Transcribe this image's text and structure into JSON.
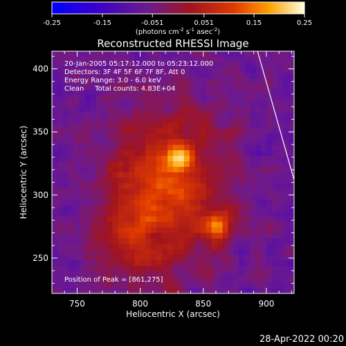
{
  "chart_data": {
    "type": "heatmap",
    "title": "Reconstructed RHESSI Image",
    "xlabel": "Heliocentric X (arcsec)",
    "ylabel": "Heliocentric Y (arcsec)",
    "xlim": [
      730,
      922
    ],
    "ylim": [
      222,
      414
    ],
    "x_ticks": [
      750,
      800,
      850,
      900
    ],
    "y_ticks": [
      250,
      300,
      350,
      400
    ],
    "colorbar": {
      "range": [
        -0.25,
        0.25
      ],
      "ticks": [
        "-0.25",
        "-0.15",
        "-0.051",
        "0.051",
        "0.15",
        "0.25"
      ],
      "tick_values": [
        -0.25,
        -0.15,
        -0.051,
        0.051,
        0.15,
        0.25
      ],
      "units_label": "(photons cm",
      "units_parts": [
        "(photons cm",
        "-2",
        " s",
        "-1",
        " asec",
        "-2",
        ")"
      ]
    },
    "annotations": [
      "20-Jan-2005 05:17:12.000 to 05:23:12.000",
      "Detectors: 3F 4F 5F 6F 7F 8F, Att 0",
      "Energy Range: 3.0 - 6.0 keV",
      "Clean     Total counts: 4.83E+04"
    ],
    "peak_label": "Position of Peak = [861,275]",
    "sources": [
      {
        "x": 861,
        "y": 275,
        "peak": 0.25
      },
      {
        "x": 832,
        "y": 330,
        "peak": 0.23
      }
    ],
    "limb_line": [
      [
        893,
        414
      ],
      [
        922,
        312
      ]
    ],
    "timestamp": "28-Apr-2022 00:20"
  }
}
